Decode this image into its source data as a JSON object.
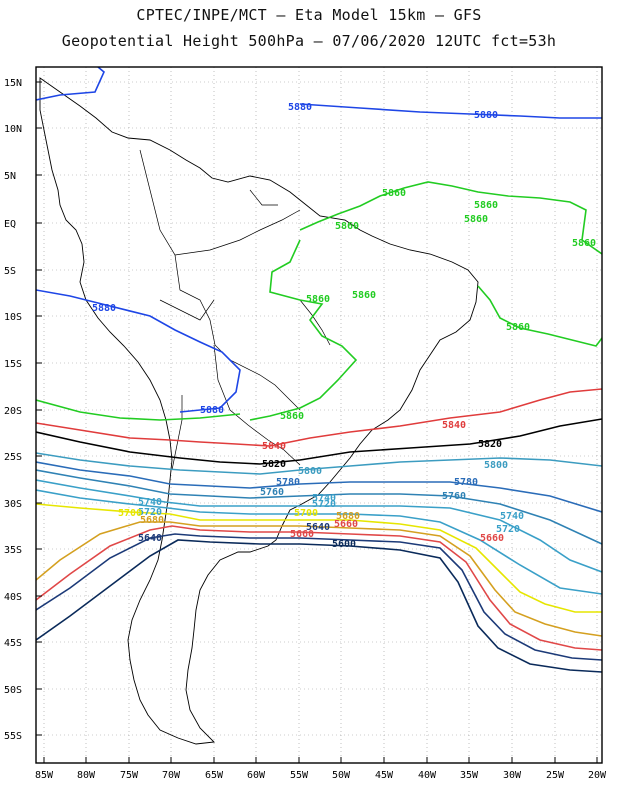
{
  "header": {
    "line1": "CPTEC/INPE/MCT –  Eta Model 15km – GFS",
    "line2": "Geopotential Height 500hPa – 07/06/2020 12UTC fct=53h"
  },
  "axes": {
    "lat_labels": [
      "15N",
      "10N",
      "5N",
      "EQ",
      "5S",
      "10S",
      "15S",
      "20S",
      "25S",
      "30S",
      "35S",
      "40S",
      "45S",
      "50S",
      "55S"
    ],
    "lon_labels": [
      "85W",
      "80W",
      "75W",
      "70W",
      "65W",
      "60W",
      "55W",
      "50W",
      "45W",
      "40W",
      "35W",
      "30W",
      "25W",
      "20W"
    ]
  },
  "contours": [
    {
      "value": "5880",
      "color": "#1e46e6"
    },
    {
      "value": "5860",
      "color": "#22cc22"
    },
    {
      "value": "5840",
      "color": "#e03c3c"
    },
    {
      "value": "5820",
      "color": "#000000"
    },
    {
      "value": "5800",
      "color": "#3c9cc0"
    },
    {
      "value": "5780",
      "color": "#2a6cb8"
    },
    {
      "value": "5760",
      "color": "#2f82b4"
    },
    {
      "value": "5740",
      "color": "#3aa0c8"
    },
    {
      "value": "5720",
      "color": "#3aa0c8"
    },
    {
      "value": "5700",
      "color": "#e6e600"
    },
    {
      "value": "5680",
      "color": "#d4a020"
    },
    {
      "value": "5660",
      "color": "#e04848"
    },
    {
      "value": "5640",
      "color": "#1c3a78"
    },
    {
      "value": "5600",
      "color": "#0a2a5a"
    }
  ]
}
